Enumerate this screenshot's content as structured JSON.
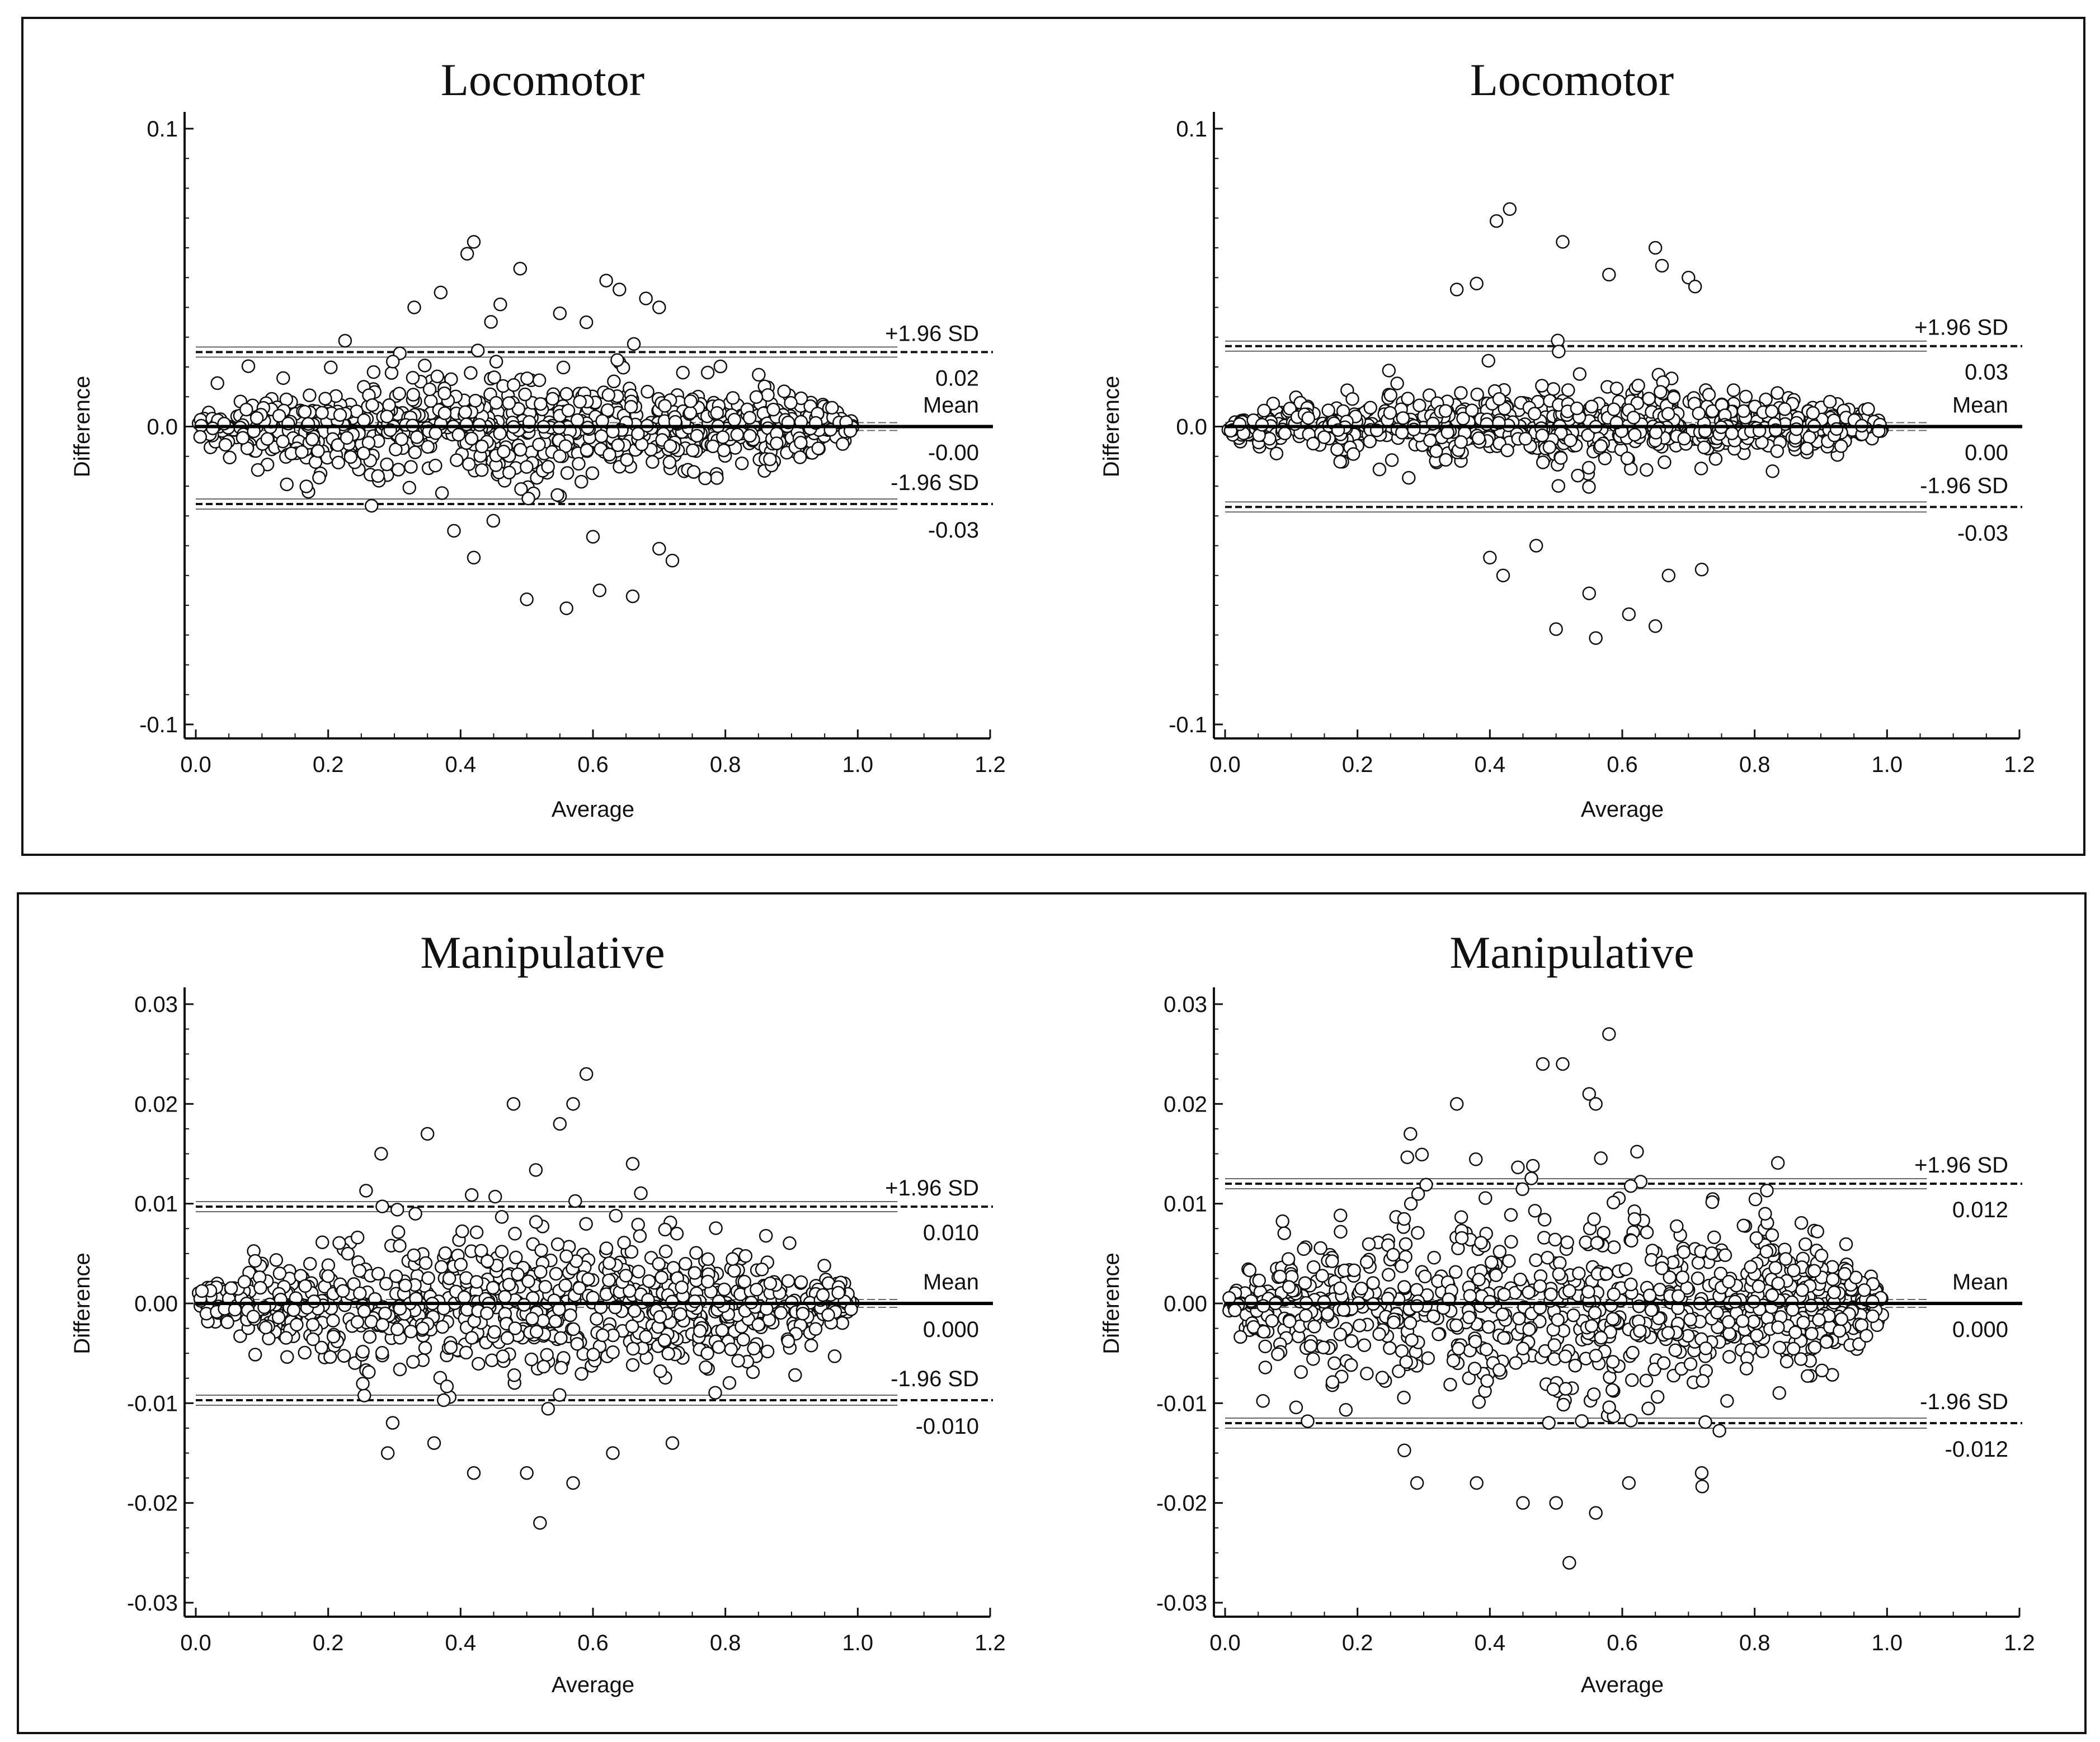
{
  "figure": {
    "frames": [
      {
        "name": "frame-top"
      },
      {
        "name": "frame-bottom"
      }
    ]
  },
  "chart_data": [
    {
      "type": "scatter",
      "panel": "top-left",
      "title": "Locomotor",
      "xlabel": "Average",
      "ylabel": "Difference",
      "xlim": [
        0,
        1.2
      ],
      "ylim": [
        -0.1,
        0.1
      ],
      "x_ticks": [
        0.0,
        0.2,
        0.4,
        0.6,
        0.8,
        1.0,
        1.2
      ],
      "x_tick_labels": [
        "0.0",
        "0.2",
        "0.4",
        "0.6",
        "0.8",
        "1.0",
        "1.2"
      ],
      "y_ticks": [
        0.1,
        0.0,
        -0.1
      ],
      "y_tick_labels": [
        "0.1",
        "0.0",
        "-0.1"
      ],
      "mean": 0.0,
      "upper_loa": 0.025,
      "lower_loa": -0.026,
      "labels": {
        "upper_name": "+1.96 SD",
        "upper_value": "0.02",
        "mean_name": "Mean",
        "mean_value": "-0.00",
        "lower_name": "-1.96 SD",
        "lower_value": "-0.03"
      },
      "sd_scale": 0.0105,
      "point_count": 900,
      "seed": 11,
      "outliers": [
        [
          0.41,
          0.058
        ],
        [
          0.42,
          0.062
        ],
        [
          0.49,
          0.053
        ],
        [
          0.55,
          0.038
        ],
        [
          0.62,
          0.049
        ],
        [
          0.68,
          0.043
        ],
        [
          0.7,
          0.04
        ],
        [
          0.37,
          0.045
        ],
        [
          0.33,
          0.04
        ],
        [
          0.46,
          0.041
        ],
        [
          0.59,
          0.035
        ],
        [
          0.64,
          0.046
        ],
        [
          0.5,
          -0.058
        ],
        [
          0.56,
          -0.061
        ],
        [
          0.61,
          -0.055
        ],
        [
          0.66,
          -0.057
        ],
        [
          0.39,
          -0.035
        ],
        [
          0.42,
          -0.044
        ],
        [
          0.6,
          -0.037
        ],
        [
          0.7,
          -0.041
        ],
        [
          0.72,
          -0.045
        ]
      ]
    },
    {
      "type": "scatter",
      "panel": "top-right",
      "title": "Locomotor",
      "xlabel": "Average",
      "ylabel": "Difference",
      "xlim": [
        0,
        1.2
      ],
      "ylim": [
        -0.1,
        0.1
      ],
      "x_ticks": [
        0.0,
        0.2,
        0.4,
        0.6,
        0.8,
        1.0,
        1.2
      ],
      "x_tick_labels": [
        "0.0",
        "0.2",
        "0.4",
        "0.6",
        "0.8",
        "1.0",
        "1.2"
      ],
      "y_ticks": [
        0.1,
        0.0,
        -0.1
      ],
      "y_tick_labels": [
        "0.1",
        "0.0",
        "-0.1"
      ],
      "mean": 0.0,
      "upper_loa": 0.027,
      "lower_loa": -0.027,
      "labels": {
        "upper_name": "+1.96 SD",
        "upper_value": "0.03",
        "mean_name": "Mean",
        "mean_value": "0.00",
        "lower_name": "-1.96 SD",
        "lower_value": "-0.03"
      },
      "sd_scale": 0.0075,
      "point_count": 800,
      "seed": 23,
      "outliers": [
        [
          0.41,
          0.069
        ],
        [
          0.43,
          0.073
        ],
        [
          0.51,
          0.062
        ],
        [
          0.65,
          0.06
        ],
        [
          0.66,
          0.054
        ],
        [
          0.7,
          0.05
        ],
        [
          0.71,
          0.047
        ],
        [
          0.38,
          0.048
        ],
        [
          0.35,
          0.046
        ],
        [
          0.58,
          0.051
        ],
        [
          0.5,
          -0.068
        ],
        [
          0.56,
          -0.071
        ],
        [
          0.65,
          -0.067
        ],
        [
          0.55,
          -0.056
        ],
        [
          0.61,
          -0.063
        ],
        [
          0.4,
          -0.044
        ],
        [
          0.42,
          -0.05
        ],
        [
          0.72,
          -0.048
        ],
        [
          0.47,
          -0.04
        ],
        [
          0.67,
          -0.05
        ]
      ]
    },
    {
      "type": "scatter",
      "panel": "bottom-left",
      "title": "Manipulative",
      "xlabel": "Average",
      "ylabel": "Difference",
      "xlim": [
        0,
        1.2
      ],
      "ylim": [
        -0.03,
        0.03
      ],
      "x_ticks": [
        0.0,
        0.2,
        0.4,
        0.6,
        0.8,
        1.0,
        1.2
      ],
      "x_tick_labels": [
        "0.0",
        "0.2",
        "0.4",
        "0.6",
        "0.8",
        "1.0",
        "1.2"
      ],
      "y_ticks": [
        0.03,
        0.02,
        0.01,
        0.0,
        -0.01,
        -0.02,
        -0.03
      ],
      "y_tick_labels": [
        "0.03",
        "0.02",
        "0.01",
        "0.00",
        "-0.01",
        "-0.02",
        "-0.03"
      ],
      "mean": 0.0,
      "upper_loa": 0.0097,
      "lower_loa": -0.0097,
      "labels": {
        "upper_name": "+1.96 SD",
        "upper_value": "0.010",
        "mean_name": "Mean",
        "mean_value": "0.000",
        "lower_name": "-1.96 SD",
        "lower_value": "-0.010"
      },
      "sd_scale": 0.0042,
      "point_count": 900,
      "seed": 37,
      "outliers": [
        [
          0.59,
          0.023
        ],
        [
          0.57,
          0.02
        ],
        [
          0.48,
          0.02
        ],
        [
          0.55,
          0.018
        ],
        [
          0.35,
          0.017
        ],
        [
          0.28,
          0.015
        ],
        [
          0.66,
          0.014
        ],
        [
          0.52,
          -0.022
        ],
        [
          0.57,
          -0.018
        ],
        [
          0.5,
          -0.017
        ],
        [
          0.42,
          -0.017
        ],
        [
          0.36,
          -0.014
        ],
        [
          0.72,
          -0.014
        ],
        [
          0.29,
          -0.015
        ],
        [
          0.63,
          -0.015
        ]
      ]
    },
    {
      "type": "scatter",
      "panel": "bottom-right",
      "title": "Manipulative",
      "xlabel": "Average",
      "ylabel": "Difference",
      "xlim": [
        0,
        1.2
      ],
      "ylim": [
        -0.03,
        0.03
      ],
      "x_ticks": [
        0.0,
        0.2,
        0.4,
        0.6,
        0.8,
        1.0,
        1.2
      ],
      "x_tick_labels": [
        "0.0",
        "0.2",
        "0.4",
        "0.6",
        "0.8",
        "1.0",
        "1.2"
      ],
      "y_ticks": [
        0.03,
        0.02,
        0.01,
        0.0,
        -0.01,
        -0.02,
        -0.03
      ],
      "y_tick_labels": [
        "0.03",
        "0.02",
        "0.01",
        "0.00",
        "-0.01",
        "-0.02",
        "-0.03"
      ],
      "mean": 0.0,
      "upper_loa": 0.012,
      "lower_loa": -0.012,
      "labels": {
        "upper_name": "+1.96 SD",
        "upper_value": "0.012",
        "mean_name": "Mean",
        "mean_value": "0.000",
        "lower_name": "-1.96 SD",
        "lower_value": "-0.012"
      },
      "sd_scale": 0.0058,
      "point_count": 950,
      "seed": 53,
      "outliers": [
        [
          0.58,
          0.027
        ],
        [
          0.48,
          0.024
        ],
        [
          0.51,
          0.024
        ],
        [
          0.55,
          0.021
        ],
        [
          0.56,
          0.02
        ],
        [
          0.35,
          0.02
        ],
        [
          0.28,
          0.017
        ],
        [
          0.52,
          -0.026
        ],
        [
          0.56,
          -0.021
        ],
        [
          0.5,
          -0.02
        ],
        [
          0.45,
          -0.02
        ],
        [
          0.38,
          -0.018
        ],
        [
          0.61,
          -0.018
        ],
        [
          0.29,
          -0.018
        ],
        [
          0.72,
          -0.017
        ]
      ]
    }
  ]
}
